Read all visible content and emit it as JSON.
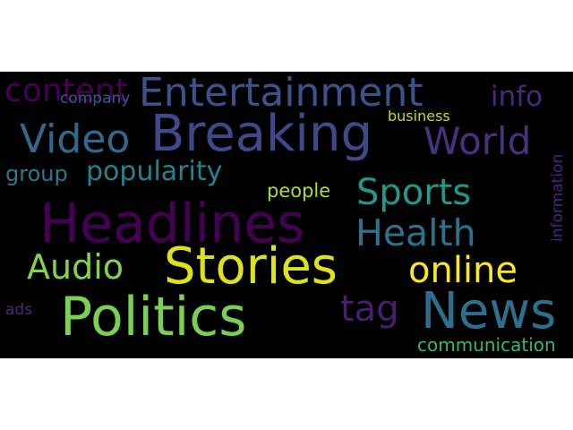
{
  "words": [
    {
      "text": "content",
      "color": "#440154"
    },
    {
      "text": "company",
      "color": "#38598c"
    },
    {
      "text": "Entertainment",
      "color": "#3b528b"
    },
    {
      "text": "info",
      "color": "#482878"
    },
    {
      "text": "business",
      "color": "#bddf26"
    },
    {
      "text": "Video",
      "color": "#31688e"
    },
    {
      "text": "Breaking",
      "color": "#3e4989"
    },
    {
      "text": "World",
      "color": "#46327e"
    },
    {
      "text": "information",
      "color": "#482677"
    },
    {
      "text": "group",
      "color": "#2a788e"
    },
    {
      "text": "popularity",
      "color": "#25838e"
    },
    {
      "text": "people",
      "color": "#addc30"
    },
    {
      "text": "Sports",
      "color": "#1f9a8a"
    },
    {
      "text": "Headlines",
      "color": "#440154"
    },
    {
      "text": "Health",
      "color": "#2c728e"
    },
    {
      "text": "Audio",
      "color": "#84d44b"
    },
    {
      "text": "Stories",
      "color": "#dde318"
    },
    {
      "text": "online",
      "color": "#fde725"
    },
    {
      "text": "tag",
      "color": "#481f70"
    },
    {
      "text": "Politics",
      "color": "#7ad151"
    },
    {
      "text": "News",
      "color": "#2d708e"
    },
    {
      "text": "ads",
      "color": "#472c7a"
    },
    {
      "text": "communication",
      "color": "#35b779"
    }
  ]
}
